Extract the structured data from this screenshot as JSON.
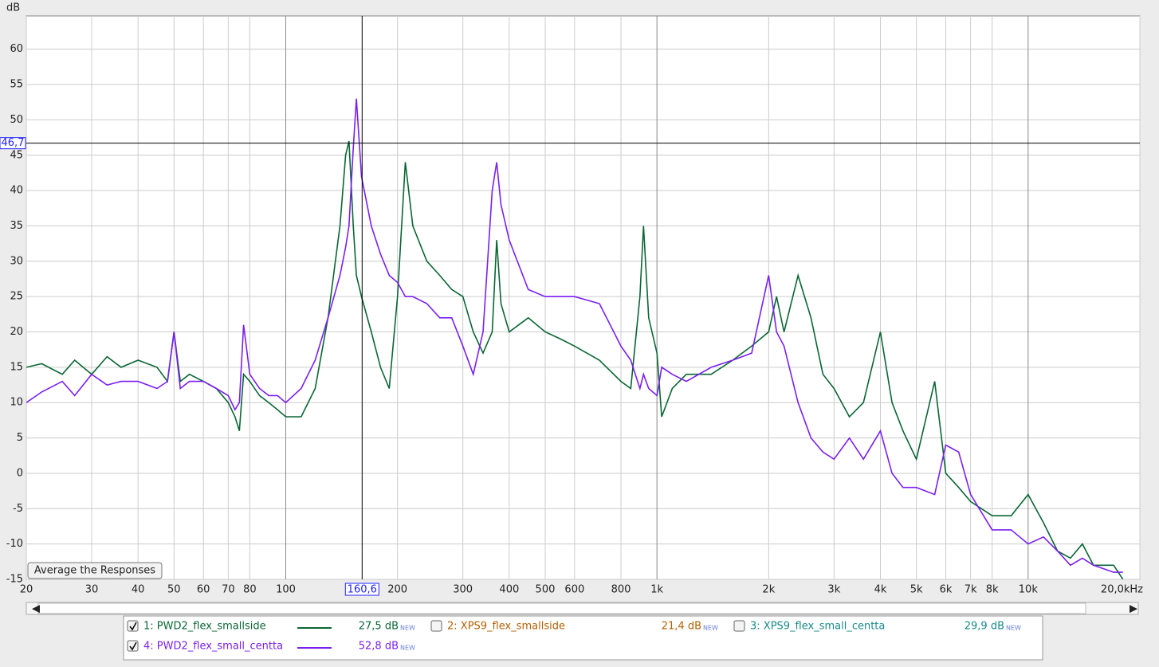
{
  "chart_data": {
    "type": "line",
    "y_unit": "dB",
    "xscale": "log",
    "grid": true,
    "xlim": [
      20,
      20000
    ],
    "ylim": [
      -15,
      64.7
    ],
    "xticks": [
      20,
      30,
      40,
      50,
      60,
      70,
      80,
      100,
      200,
      300,
      400,
      500,
      600,
      800,
      {
        "value": 1000,
        "label": "1k"
      },
      {
        "value": 2000,
        "label": "2k"
      },
      {
        "value": 3000,
        "label": "3k"
      },
      {
        "value": 4000,
        "label": "4k"
      },
      {
        "value": 5000,
        "label": "5k"
      },
      {
        "value": 6000,
        "label": "6k"
      },
      {
        "value": 7000,
        "label": "7k"
      },
      {
        "value": 8000,
        "label": "8k"
      },
      {
        "value": 10000,
        "label": "10k"
      },
      {
        "value": 20000,
        "label": "20,0kHz"
      }
    ],
    "yticks": [
      -15,
      -10,
      -5,
      0,
      5,
      10,
      15,
      20,
      25,
      30,
      35,
      40,
      45,
      50,
      55,
      60
    ],
    "cursor": {
      "x": {
        "value": 160.6,
        "label": "160,6"
      },
      "y": {
        "value": 46.7,
        "label": "46,7"
      }
    },
    "button": "Average the Responses",
    "x": [
      20,
      22,
      25,
      27,
      30,
      33,
      36,
      40,
      45,
      48,
      50,
      52,
      55,
      60,
      65,
      70,
      73,
      75,
      77,
      80,
      85,
      90,
      95,
      100,
      110,
      120,
      130,
      140,
      145,
      148,
      152,
      155,
      160,
      170,
      180,
      190,
      200,
      210,
      220,
      240,
      260,
      280,
      300,
      320,
      340,
      360,
      370,
      380,
      400,
      450,
      500,
      550,
      600,
      700,
      800,
      850,
      900,
      920,
      950,
      1000,
      1030,
      1100,
      1200,
      1400,
      1600,
      1800,
      2000,
      2100,
      2200,
      2400,
      2600,
      2800,
      3000,
      3300,
      3600,
      4000,
      4300,
      4600,
      5000,
      5600,
      6000,
      6500,
      7000,
      8000,
      9000,
      10000,
      11000,
      12000,
      13000,
      14000,
      15000,
      17000,
      18000
    ],
    "series": [
      {
        "name": "1: PWD2_flex_smallside",
        "color": "#0a6634",
        "checked": true,
        "level": "27,5 dB",
        "tag": "NEW",
        "values": [
          15,
          15.5,
          14,
          16,
          14,
          16.5,
          15,
          16,
          15,
          13,
          20,
          13,
          14,
          13,
          12,
          10,
          8,
          6,
          14,
          13,
          11,
          10,
          9,
          8,
          8,
          12,
          22,
          35,
          45,
          47,
          35,
          28,
          25,
          20,
          15,
          12,
          25,
          44,
          35,
          30,
          28,
          26,
          25,
          20,
          17,
          20,
          33,
          24,
          20,
          22,
          20,
          19,
          18,
          16,
          13,
          12,
          25,
          35,
          22,
          17,
          8,
          12,
          14,
          14,
          16,
          18,
          20,
          25,
          20,
          28,
          22,
          14,
          12,
          8,
          10,
          20,
          10,
          6,
          2,
          13,
          0,
          -2,
          -4,
          -6,
          -6,
          -3,
          -7,
          -11,
          -12,
          -10,
          -13,
          -13,
          -15
        ]
      },
      {
        "name": "2: XPS9_flex_smallside",
        "color": "#b35f00",
        "checked": false,
        "level": "21,4 dB",
        "tag": "NEW"
      },
      {
        "name": "3: XPS9_flex_small_centta",
        "color": "#17898a",
        "checked": false,
        "level": "29,9 dB",
        "tag": "NEW"
      },
      {
        "name": "4: PWD2_flex_small_centta",
        "color": "#7a1ff0",
        "checked": true,
        "level": "52,8 dB",
        "tag": "NEW",
        "values": [
          10,
          11.5,
          13,
          11,
          14,
          12.5,
          13,
          13,
          12,
          13,
          20,
          12,
          13,
          13,
          12,
          11,
          9,
          10,
          21,
          14,
          12,
          11,
          11,
          10,
          12,
          16,
          22,
          28,
          32,
          35,
          46,
          53,
          42,
          35,
          31,
          28,
          27,
          25,
          25,
          24,
          22,
          22,
          18,
          14,
          20,
          40,
          44,
          38,
          33,
          26,
          25,
          25,
          25,
          24,
          18,
          16,
          12,
          14,
          12,
          11,
          15,
          14,
          13,
          15,
          16,
          17,
          28,
          20,
          18,
          10,
          5,
          3,
          2,
          5,
          2,
          6,
          0,
          -2,
          -2,
          -3,
          4,
          3,
          -3,
          -8,
          -8,
          -10,
          -9,
          -11,
          -13,
          -12,
          -13,
          -14,
          -14
        ]
      }
    ]
  }
}
